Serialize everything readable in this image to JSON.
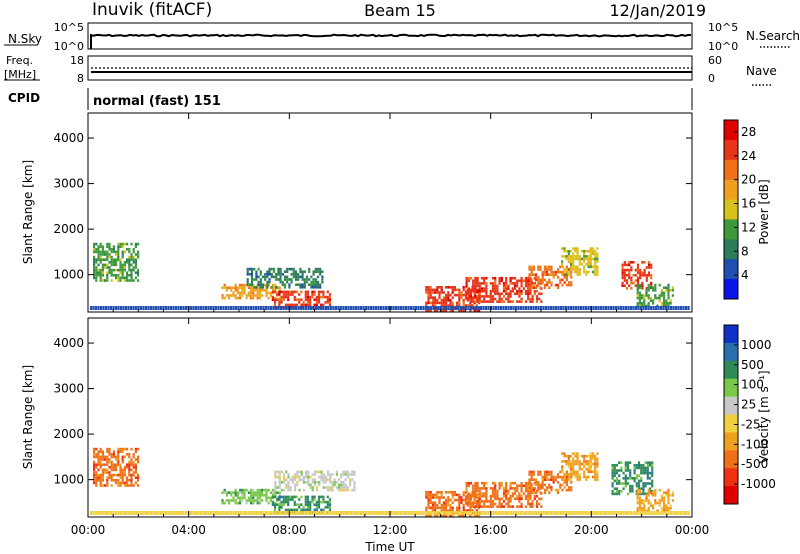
{
  "header": {
    "station": "Inuvik (fitACF)",
    "beam": "Beam 15",
    "date": "12/Jan/2019"
  },
  "top_panels": {
    "nsky_label": "N.Sky",
    "nsky_ticks": [
      "10^5",
      "10^0"
    ],
    "nsearch_label": "N.Search",
    "nsearch_ticks": [
      "10^5",
      "10^0"
    ],
    "freq_label": "Freq.",
    "freq_unit": "[MHz]",
    "freq_ticks": [
      "18",
      "8"
    ],
    "nave_label": "Nave",
    "nave_ticks": [
      "60",
      "0"
    ],
    "cpid_label": "CPID",
    "cpid_value": "normal (fast) 151"
  },
  "colors": {
    "power": [
      "#0a14e6",
      "#1f4fb0",
      "#2e7d5a",
      "#3c9a3c",
      "#d9c21a",
      "#f0a020",
      "#f07018",
      "#e83418",
      "#e00000"
    ],
    "velocity": [
      "#e00000",
      "#f03010",
      "#f07018",
      "#f0a020",
      "#f0d040",
      "#c8c8c8",
      "#7ac84a",
      "#2e8b57",
      "#2a6fb0",
      "#1030c8"
    ]
  },
  "chart_data": [
    {
      "type": "heatmap",
      "name": "power",
      "ylabel": "Slant Range [km]",
      "y_ticks": [
        "1000",
        "2000",
        "3000",
        "4000"
      ],
      "x_ticks": [
        "00:00",
        "04:00",
        "08:00",
        "12:00",
        "16:00",
        "20:00",
        "00:00"
      ],
      "xlim_hours": [
        0,
        24
      ],
      "ylim_km": [
        180,
        4550
      ],
      "colorbar_label": "Power [dB]",
      "colorbar_ticks": [
        "4",
        "8",
        "12",
        "16",
        "20",
        "24",
        "28"
      ],
      "colorbar_range": [
        0,
        30
      ],
      "echo_regions": [
        {
          "t0": 0.2,
          "t1": 2.0,
          "r0": 900,
          "r1": 1700,
          "value": 10
        },
        {
          "t0": 5.3,
          "t1": 7.6,
          "r0": 500,
          "r1": 800,
          "value": 18
        },
        {
          "t0": 7.3,
          "t1": 9.6,
          "r0": 300,
          "r1": 650,
          "value": 27
        },
        {
          "t0": 6.3,
          "t1": 9.3,
          "r0": 750,
          "r1": 1150,
          "value": 9
        },
        {
          "t0": 13.4,
          "t1": 15.5,
          "r0": 200,
          "r1": 750,
          "value": 28
        },
        {
          "t0": 15.0,
          "t1": 18.0,
          "r0": 400,
          "r1": 950,
          "value": 25
        },
        {
          "t0": 17.5,
          "t1": 19.2,
          "r0": 700,
          "r1": 1200,
          "value": 22
        },
        {
          "t0": 18.8,
          "t1": 20.2,
          "r0": 1000,
          "r1": 1600,
          "value": 14
        },
        {
          "t0": 21.2,
          "t1": 22.4,
          "r0": 700,
          "r1": 1300,
          "value": 28
        },
        {
          "t0": 21.8,
          "t1": 23.2,
          "r0": 300,
          "r1": 800,
          "value": 10
        }
      ]
    },
    {
      "type": "heatmap",
      "name": "velocity",
      "ylabel": "Slant Range [km]",
      "y_ticks": [
        "1000",
        "2000",
        "3000",
        "4000"
      ],
      "x_ticks": [
        "00:00",
        "04:00",
        "08:00",
        "12:00",
        "16:00",
        "20:00",
        "00:00"
      ],
      "xlabel": "Time UT",
      "xlim_hours": [
        0,
        24
      ],
      "ylim_km": [
        180,
        4550
      ],
      "colorbar_label": "Velocity [m s⁻¹]",
      "colorbar_ticks": [
        "1000",
        "500",
        "100",
        "25",
        "-25",
        "-100",
        "-500",
        "-1000"
      ],
      "echo_regions": [
        {
          "t0": 0.2,
          "t1": 2.0,
          "r0": 900,
          "r1": 1700,
          "value": -300
        },
        {
          "t0": 5.3,
          "t1": 7.6,
          "r0": 500,
          "r1": 800,
          "value": 60
        },
        {
          "t0": 7.3,
          "t1": 9.6,
          "r0": 300,
          "r1": 650,
          "value": 120
        },
        {
          "t0": 7.4,
          "t1": 10.6,
          "r0": 800,
          "r1": 1200,
          "value": 0
        },
        {
          "t0": 13.4,
          "t1": 15.5,
          "r0": 200,
          "r1": 750,
          "value": -300
        },
        {
          "t0": 15.0,
          "t1": 18.0,
          "r0": 400,
          "r1": 950,
          "value": -250
        },
        {
          "t0": 17.5,
          "t1": 19.2,
          "r0": 700,
          "r1": 1200,
          "value": -150
        },
        {
          "t0": 18.8,
          "t1": 20.2,
          "r0": 1000,
          "r1": 1600,
          "value": -80
        },
        {
          "t0": 20.8,
          "t1": 22.4,
          "r0": 700,
          "r1": 1400,
          "value": 400
        },
        {
          "t0": 21.8,
          "t1": 23.2,
          "r0": 300,
          "r1": 800,
          "value": -60
        }
      ]
    }
  ]
}
